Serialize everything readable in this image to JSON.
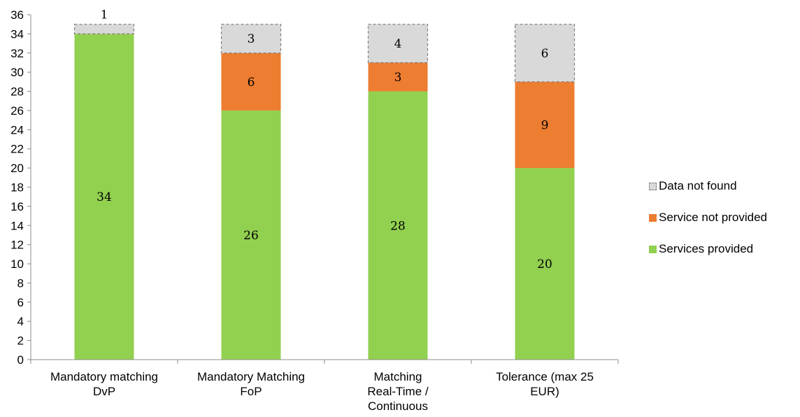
{
  "chart_data": {
    "type": "bar",
    "stacked": true,
    "categories": [
      [
        "Mandatory matching",
        "DvP"
      ],
      [
        "Mandatory Matching",
        "FoP"
      ],
      [
        "Matching",
        "Real-Time /",
        "Continuous"
      ],
      [
        "Tolerance (max 25",
        "EUR)"
      ]
    ],
    "series": [
      {
        "name": "Services provided",
        "values": [
          34,
          26,
          28,
          20
        ],
        "color": "#92d050",
        "style": "solid"
      },
      {
        "name": "Service not provided",
        "values": [
          0,
          6,
          3,
          9
        ],
        "color": "#ed7d31",
        "style": "solid"
      },
      {
        "name": "Data not found",
        "values": [
          1,
          3,
          4,
          6
        ],
        "color": "#d9d9d9",
        "style": "dashed"
      }
    ],
    "legend_order": [
      "Data not found",
      "Service not provided",
      "Services provided"
    ],
    "legend_position": "right",
    "ylim": [
      0,
      36
    ],
    "ytick_step": 2,
    "grid": false,
    "title": "",
    "xlabel": "",
    "ylabel": ""
  }
}
